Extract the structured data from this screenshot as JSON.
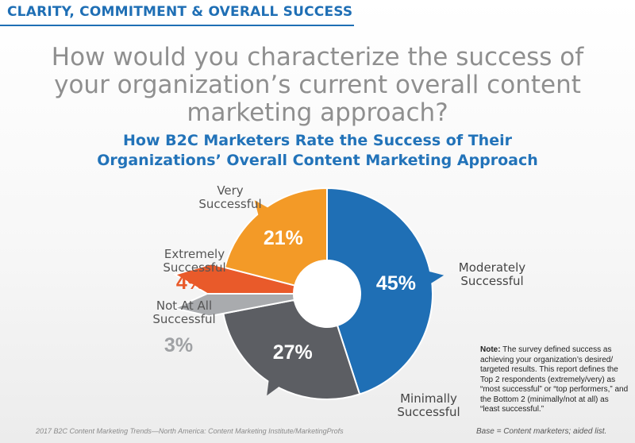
{
  "header": {
    "section_title": "CLARITY, COMMITMENT & OVERALL SUCCESS",
    "question": "How would you characterize the success of your organization’s current overall content marketing approach?"
  },
  "chart_data": {
    "type": "pie",
    "title": "How B2C Marketers Rate the Success of Their Organizations’ Overall Content Marketing Approach",
    "series": [
      {
        "name": "Moderately Successful",
        "label_lines": [
          "Moderately",
          "Successful"
        ],
        "value": 45,
        "value_label": "45%",
        "color": "#1f6fb5"
      },
      {
        "name": "Minimally Successful",
        "label_lines": [
          "Minimally",
          "Successful"
        ],
        "value": 27,
        "value_label": "27%",
        "color": "#5c5e63"
      },
      {
        "name": "Not At All Successful",
        "label_lines": [
          "Not At All",
          "Successful"
        ],
        "value": 3,
        "value_label": "3%",
        "color": "#a9abae"
      },
      {
        "name": "Extremely Successful",
        "label_lines": [
          "Extremely",
          "Successful"
        ],
        "value": 4,
        "value_label": "4%",
        "color": "#e95a2a"
      },
      {
        "name": "Very Successful",
        "label_lines": [
          "Very",
          "Successful"
        ],
        "value": 21,
        "value_label": "21%",
        "color": "#f39a27"
      }
    ]
  },
  "note": {
    "label": "Note:",
    "text": "The survey defined success as achieving your organization’s desired/ targeted results. This report defines the Top 2 respondents (extremely/very) as “most successful” or “top performers,” and the Bottom 2 (minimally/not at all) as “least successful.”"
  },
  "footer": {
    "source": "2017 B2C Content Marketing Trends—North America: Content Marketing Institute/MarketingProfs",
    "base": "Base = Content marketers; aided list."
  }
}
